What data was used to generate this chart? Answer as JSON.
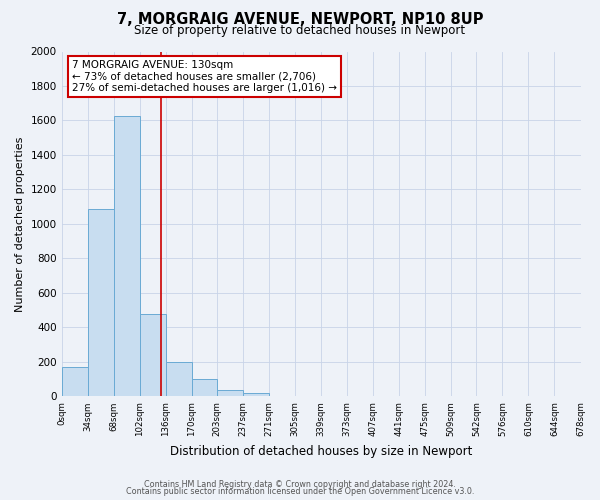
{
  "title": "7, MORGRAIG AVENUE, NEWPORT, NP10 8UP",
  "subtitle": "Size of property relative to detached houses in Newport",
  "xlabel": "Distribution of detached houses by size in Newport",
  "ylabel": "Number of detached properties",
  "bin_edges": [
    0,
    34,
    68,
    102,
    136,
    170,
    203,
    237,
    271,
    305,
    339,
    373,
    407,
    441,
    475,
    509,
    542,
    576,
    610,
    644,
    678
  ],
  "bin_counts": [
    170,
    1085,
    1625,
    480,
    200,
    100,
    40,
    20,
    0,
    0,
    0,
    0,
    0,
    0,
    0,
    0,
    0,
    0,
    0,
    0
  ],
  "bar_facecolor": "#c8ddf0",
  "bar_edgecolor": "#6aaad4",
  "grid_color": "#c8d4e8",
  "background_color": "#eef2f8",
  "vline_x": 130,
  "vline_color": "#cc0000",
  "annotation_text": "7 MORGRAIG AVENUE: 130sqm\n← 73% of detached houses are smaller (2,706)\n27% of semi-detached houses are larger (1,016) →",
  "annotation_box_edgecolor": "#cc0000",
  "annotation_box_facecolor": "#ffffff",
  "ylim": [
    0,
    2000
  ],
  "yticks": [
    0,
    200,
    400,
    600,
    800,
    1000,
    1200,
    1400,
    1600,
    1800,
    2000
  ],
  "xlim": [
    0,
    678
  ],
  "xtick_labels": [
    "0sqm",
    "34sqm",
    "68sqm",
    "102sqm",
    "136sqm",
    "170sqm",
    "203sqm",
    "237sqm",
    "271sqm",
    "305sqm",
    "339sqm",
    "373sqm",
    "407sqm",
    "441sqm",
    "475sqm",
    "509sqm",
    "542sqm",
    "576sqm",
    "610sqm",
    "644sqm",
    "678sqm"
  ],
  "footer_line1": "Contains HM Land Registry data © Crown copyright and database right 2024.",
  "footer_line2": "Contains public sector information licensed under the Open Government Licence v3.0.",
  "title_fontsize": 10.5,
  "subtitle_fontsize": 8.5,
  "ylabel_fontsize": 8,
  "xlabel_fontsize": 8.5,
  "ytick_fontsize": 7.5,
  "xtick_fontsize": 6.2,
  "footer_fontsize": 5.8,
  "annot_fontsize": 7.5
}
